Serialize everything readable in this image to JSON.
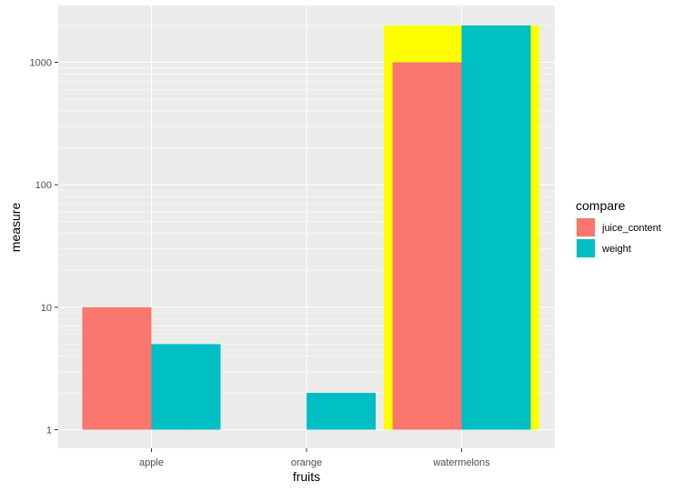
{
  "chart_data": {
    "type": "bar",
    "xlabel": "fruits",
    "ylabel": "measure",
    "y_scale": "log10",
    "ylim": [
      0.87,
      2300
    ],
    "yticks": [
      1,
      10,
      100,
      1000
    ],
    "ytick_labels": [
      "1",
      "10",
      "100",
      "1000"
    ],
    "categories": [
      "apple",
      "orange",
      "watermelons"
    ],
    "series": [
      {
        "name": "juice_content",
        "color": "#F8766D",
        "values": [
          10,
          null,
          1000
        ]
      },
      {
        "name": "weight",
        "color": "#00BFC4",
        "values": [
          5,
          2,
          2000
        ]
      }
    ],
    "highlight": {
      "category": "watermelons",
      "value": 2000,
      "color": "#FFFF00"
    },
    "legend": {
      "title": "compare",
      "position": "right"
    },
    "grid": true,
    "panel_background": "#EBEBEB",
    "grid_color": "#FFFFFF"
  }
}
